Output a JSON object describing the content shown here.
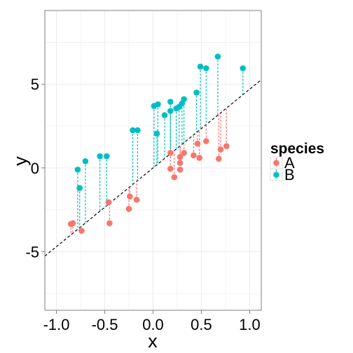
{
  "chart_data": {
    "type": "scatter",
    "title": "",
    "xlabel": "x",
    "ylabel": "y",
    "xlim": [
      -1.12,
      1.12
    ],
    "ylim": [
      -8.5,
      9.4
    ],
    "x_ticks": [
      -1.0,
      -0.5,
      0.0,
      0.5,
      1.0
    ],
    "x_tick_labels": [
      "-1.0",
      "-0.5",
      "0.0",
      "0.5",
      "1.0"
    ],
    "y_ticks": [
      -5,
      0,
      5
    ],
    "y_tick_labels": [
      "-5",
      "0",
      "5"
    ],
    "grid": true,
    "background": "#ffffff",
    "grid_color": "#ebebeb",
    "legend": {
      "title": "species",
      "placement": "right",
      "entries": [
        "A",
        "B"
      ]
    },
    "colors": {
      "A": "#f8766d",
      "B": "#00bfc4",
      "fit_line": "#000000"
    },
    "reference_line": {
      "intercept": 0.0,
      "slope": 4.7,
      "style": "dashed"
    },
    "series": [
      {
        "name": "A",
        "x": [
          -0.85,
          -0.83,
          -0.74,
          -0.46,
          -0.45,
          -0.25,
          -0.24,
          -0.17,
          0.18,
          0.18,
          0.22,
          0.28,
          0.28,
          0.28,
          0.32,
          0.42,
          0.46,
          0.48,
          0.55,
          0.68,
          0.7,
          0.76
        ],
        "y": [
          -3.35,
          -3.3,
          -3.75,
          -2.05,
          -3.3,
          -2.45,
          -1.7,
          -1.9,
          0.9,
          -0.05,
          -0.55,
          0.65,
          0.3,
          -0.1,
          0.9,
          0.75,
          1.45,
          0.6,
          1.6,
          0.55,
          1.1,
          1.3
        ]
      },
      {
        "name": "B",
        "x": [
          -0.78,
          -0.76,
          -0.7,
          -0.55,
          -0.48,
          -0.21,
          -0.16,
          0.01,
          0.04,
          0.05,
          0.12,
          0.18,
          0.18,
          0.24,
          0.27,
          0.3,
          0.32,
          0.45,
          0.49,
          0.55,
          0.67,
          0.93
        ],
        "y": [
          -0.1,
          -1.2,
          0.4,
          0.7,
          0.7,
          2.25,
          2.25,
          3.7,
          2.05,
          3.8,
          3.15,
          3.4,
          3.95,
          3.55,
          3.65,
          3.85,
          4.1,
          4.5,
          6.05,
          5.95,
          6.65,
          5.95
        ]
      }
    ]
  }
}
